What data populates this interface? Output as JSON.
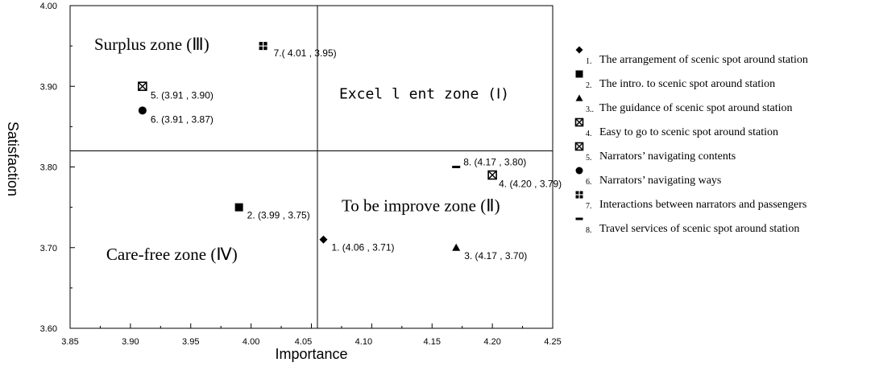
{
  "chart_data": {
    "type": "scatter",
    "xlabel": "Importance",
    "ylabel": "Satisfaction",
    "xlim": [
      3.85,
      4.25
    ],
    "ylim": [
      3.6,
      4.0
    ],
    "x_ticks": [
      "3.85",
      "3.90",
      "3.95",
      "4.00",
      "4.05",
      "4.10",
      "4.15",
      "4.20",
      "4.25"
    ],
    "x_tick_values": [
      3.85,
      3.9,
      3.95,
      4.0,
      4.05,
      4.1,
      4.15,
      4.2,
      4.25
    ],
    "y_ticks": [
      "3.60",
      "3.70",
      "3.80",
      "3.90",
      "4.00"
    ],
    "y_tick_values": [
      3.6,
      3.7,
      3.8,
      3.9,
      4.0
    ],
    "divider_x": 4.055,
    "divider_y": 3.82,
    "zones": [
      {
        "text": "Surplus zone (Ⅲ)",
        "font": "serif",
        "x": 3.87,
        "y": 3.945
      },
      {
        "text": "Excel l ent zone (Ⅰ)",
        "font": "mono",
        "x": 4.073,
        "y": 3.885
      },
      {
        "text": "To be improve zone (Ⅱ)",
        "font": "serif",
        "x": 4.075,
        "y": 3.745
      },
      {
        "text": "Care-free zone (Ⅳ)",
        "font": "serif",
        "x": 3.88,
        "y": 3.685
      }
    ],
    "points": [
      {
        "id": 1,
        "marker": "diamond",
        "x": 4.06,
        "y": 3.71,
        "label": "1. (4.06 , 3.71)"
      },
      {
        "id": 2,
        "marker": "square",
        "x": 3.99,
        "y": 3.75,
        "label": "2. (3.99 , 3.75)"
      },
      {
        "id": 3,
        "marker": "triangle",
        "x": 4.17,
        "y": 3.7,
        "label": "3. (4.17 , 3.70)"
      },
      {
        "id": 4,
        "marker": "xbox",
        "x": 4.2,
        "y": 3.79,
        "label": "4. (4.20 , 3.79)"
      },
      {
        "id": 5,
        "marker": "xbox",
        "x": 3.91,
        "y": 3.9,
        "label": "5. (3.91 , 3.90)"
      },
      {
        "id": 6,
        "marker": "circle",
        "x": 3.91,
        "y": 3.87,
        "label": "6. (3.91 , 3.87)"
      },
      {
        "id": 7,
        "marker": "crossbox",
        "x": 4.01,
        "y": 3.95,
        "label": "7.( 4.01 , 3.95)"
      },
      {
        "id": 8,
        "marker": "dash",
        "x": 4.17,
        "y": 3.8,
        "label": "8. (4.17 , 3.80)"
      }
    ],
    "legend": [
      {
        "marker": "diamond",
        "num": "1.",
        "text": "The arrangement of scenic spot around station"
      },
      {
        "marker": "square",
        "num": "2.",
        "text": "The intro. to scenic spot around station"
      },
      {
        "marker": "triangle",
        "num": "3..",
        "text": "The guidance of scenic spot around station"
      },
      {
        "marker": "xbox",
        "num": "4.",
        "text": "Easy to go to scenic spot around station"
      },
      {
        "marker": "xbox",
        "num": "5.",
        "text": "Narrators’ navigating contents"
      },
      {
        "marker": "circle",
        "num": "6.",
        "text": "Narrators’ navigating ways"
      },
      {
        "marker": "crossbox",
        "num": "7.",
        "text": "Interactions between narrators and passengers"
      },
      {
        "marker": "dash",
        "num": "8.",
        "text": "Travel services of scenic spot around station"
      }
    ],
    "legend_position": "right",
    "grid": false
  }
}
